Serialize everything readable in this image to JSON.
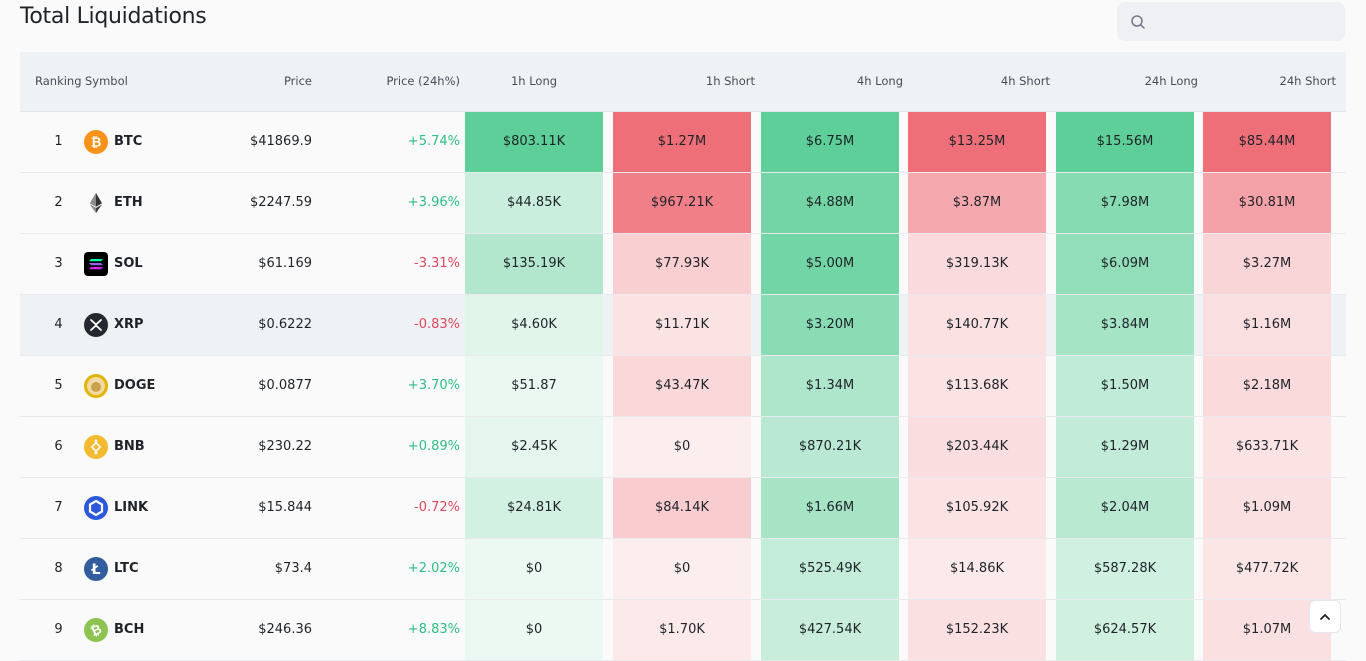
{
  "title": "Total Liquidations",
  "search": {
    "placeholder": ""
  },
  "columns": {
    "ranking": "Ranking",
    "symbol": "Symbol",
    "price": "Price",
    "price24": "Price (24h%)",
    "l1": "1h Long",
    "s1": "1h Short",
    "l4": "4h Long",
    "s4": "4h Short",
    "l24": "24h Long",
    "s24": "24h Short"
  },
  "colors": {
    "long_strong": "#5ecf98",
    "short_strong": "#ef6f78",
    "positive": "#2ebd85",
    "negative": "#e0465e"
  },
  "rows": [
    {
      "rank": "1",
      "symbol": "BTC",
      "icon": "btc-icon",
      "price": "$41869.9",
      "change": "+5.74%",
      "l1": "$803.11K",
      "s1": "$1.27M",
      "l4": "$6.75M",
      "s4": "$13.25M",
      "l24": "$15.56M",
      "s24": "$85.44M"
    },
    {
      "rank": "2",
      "symbol": "ETH",
      "icon": "eth-icon",
      "price": "$2247.59",
      "change": "+3.96%",
      "l1": "$44.85K",
      "s1": "$967.21K",
      "l4": "$4.88M",
      "s4": "$3.87M",
      "l24": "$7.98M",
      "s24": "$30.81M"
    },
    {
      "rank": "3",
      "symbol": "SOL",
      "icon": "sol-icon",
      "price": "$61.169",
      "change": "-3.31%",
      "l1": "$135.19K",
      "s1": "$77.93K",
      "l4": "$5.00M",
      "s4": "$319.13K",
      "l24": "$6.09M",
      "s24": "$3.27M"
    },
    {
      "rank": "4",
      "symbol": "XRP",
      "icon": "xrp-icon",
      "price": "$0.6222",
      "change": "-0.83%",
      "l1": "$4.60K",
      "s1": "$11.71K",
      "l4": "$3.20M",
      "s4": "$140.77K",
      "l24": "$3.84M",
      "s24": "$1.16M"
    },
    {
      "rank": "5",
      "symbol": "DOGE",
      "icon": "doge-icon",
      "price": "$0.0877",
      "change": "+3.70%",
      "l1": "$51.87",
      "s1": "$43.47K",
      "l4": "$1.34M",
      "s4": "$113.68K",
      "l24": "$1.50M",
      "s24": "$2.18M"
    },
    {
      "rank": "6",
      "symbol": "BNB",
      "icon": "bnb-icon",
      "price": "$230.22",
      "change": "+0.89%",
      "l1": "$2.45K",
      "s1": "$0",
      "l4": "$870.21K",
      "s4": "$203.44K",
      "l24": "$1.29M",
      "s24": "$633.71K"
    },
    {
      "rank": "7",
      "symbol": "LINK",
      "icon": "link-icon",
      "price": "$15.844",
      "change": "-0.72%",
      "l1": "$24.81K",
      "s1": "$84.14K",
      "l4": "$1.66M",
      "s4": "$105.92K",
      "l24": "$2.04M",
      "s24": "$1.09M"
    },
    {
      "rank": "8",
      "symbol": "LTC",
      "icon": "ltc-icon",
      "price": "$73.4",
      "change": "+2.02%",
      "l1": "$0",
      "s1": "$0",
      "l4": "$525.49K",
      "s4": "$14.86K",
      "l24": "$587.28K",
      "s24": "$477.72K"
    },
    {
      "rank": "9",
      "symbol": "BCH",
      "icon": "bch-icon",
      "price": "$246.36",
      "change": "+8.83%",
      "l1": "$0",
      "s1": "$1.70K",
      "l4": "$427.54K",
      "s4": "$152.23K",
      "l24": "$624.57K",
      "s24": "$1.07M"
    }
  ]
}
